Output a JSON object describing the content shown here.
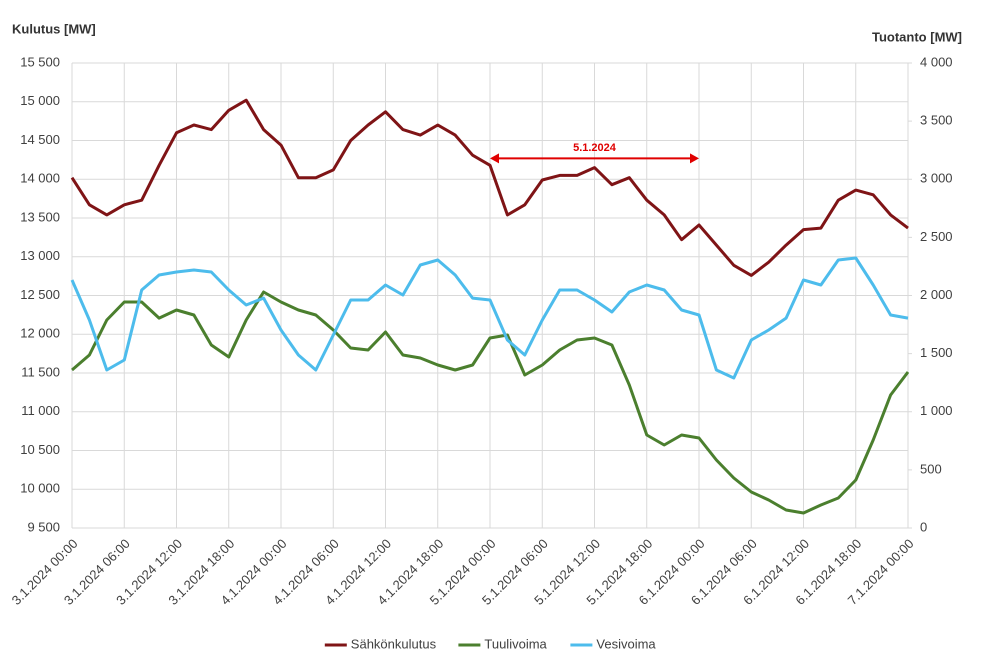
{
  "chart_data": {
    "type": "line",
    "y_label": "Kulutus [MW]",
    "y2_label": "Tuotanto [MW]",
    "grid": true,
    "legend": "bottom",
    "xlim": [
      0,
      96
    ],
    "xticks": [
      {
        "value": 0,
        "label": "3.1.2024 00:00"
      },
      {
        "value": 6,
        "label": "3.1.2024 06:00"
      },
      {
        "value": 12,
        "label": "3.1.2024 12:00"
      },
      {
        "value": 18,
        "label": "3.1.2024 18:00"
      },
      {
        "value": 24,
        "label": "4.1.2024 00:00"
      },
      {
        "value": 30,
        "label": "4.1.2024 06:00"
      },
      {
        "value": 36,
        "label": "4.1.2024 12:00"
      },
      {
        "value": 42,
        "label": "4.1.2024 18:00"
      },
      {
        "value": 48,
        "label": "5.1.2024 00:00"
      },
      {
        "value": 54,
        "label": "5.1.2024 06:00"
      },
      {
        "value": 60,
        "label": "5.1.2024 12:00"
      },
      {
        "value": 66,
        "label": "5.1.2024 18:00"
      },
      {
        "value": 72,
        "label": "6.1.2024 00:00"
      },
      {
        "value": 78,
        "label": "6.1.2024 06:00"
      },
      {
        "value": 84,
        "label": "6.1.2024 12:00"
      },
      {
        "value": 90,
        "label": "6.1.2024 18:00"
      },
      {
        "value": 96,
        "label": "7.1.2024 00:00"
      }
    ],
    "ylim": [
      9500,
      15500
    ],
    "yticks": [
      {
        "value": 9500,
        "label": "9 500"
      },
      {
        "value": 10000,
        "label": "10 000"
      },
      {
        "value": 10500,
        "label": "10 500"
      },
      {
        "value": 11000,
        "label": "11 000"
      },
      {
        "value": 11500,
        "label": "11 500"
      },
      {
        "value": 12000,
        "label": "12 000"
      },
      {
        "value": 12500,
        "label": "12 500"
      },
      {
        "value": 13000,
        "label": "13 000"
      },
      {
        "value": 13500,
        "label": "13 500"
      },
      {
        "value": 14000,
        "label": "14 000"
      },
      {
        "value": 14500,
        "label": "14 500"
      },
      {
        "value": 15000,
        "label": "15 000"
      },
      {
        "value": 15500,
        "label": "15 500"
      }
    ],
    "y2lim": [
      0,
      4000
    ],
    "y2ticks": [
      0,
      500,
      {
        "value": 1000,
        "label": "1 000"
      },
      {
        "value": 1500,
        "label": "1 500"
      },
      {
        "value": 2000,
        "label": "2 000"
      },
      {
        "value": 2500,
        "label": "2 500"
      },
      {
        "value": 3000,
        "label": "3 000"
      },
      {
        "value": 3500,
        "label": "3 500"
      },
      {
        "value": 4000,
        "label": "4 000"
      }
    ],
    "x": [
      0,
      2,
      4,
      6,
      8,
      10,
      12,
      14,
      16,
      18,
      20,
      22,
      24,
      26,
      28,
      30,
      32,
      34,
      36,
      38,
      40,
      42,
      44,
      46,
      48,
      50,
      52,
      54,
      56,
      58,
      60,
      62,
      64,
      66,
      68,
      70,
      72,
      74,
      76,
      78,
      80,
      82,
      84,
      86,
      88,
      90,
      92,
      94,
      96
    ],
    "series": [
      {
        "name": "Sähkönkulutus",
        "color": "#7f1416",
        "axis": "y",
        "values": [
          14020,
          13670,
          13540,
          13670,
          13730,
          14180,
          14600,
          14700,
          14640,
          14890,
          15020,
          14640,
          14440,
          14020,
          14020,
          14120,
          14500,
          14700,
          14870,
          14640,
          14570,
          14700,
          14570,
          14310,
          14180,
          13540,
          13670,
          13990,
          14050,
          14050,
          14150,
          13930,
          14020,
          13730,
          13540,
          13220,
          13410,
          13150,
          12890,
          12760,
          12930,
          13150,
          13350,
          13370,
          13730,
          13860,
          13800,
          13540,
          13370
        ]
      },
      {
        "name": "Tuulivoima",
        "color": "#4b7f2e",
        "axis": "y2",
        "values": [
          1359,
          1488,
          1789,
          1944,
          1944,
          1806,
          1875,
          1832,
          1574,
          1471,
          1789,
          2030,
          1944,
          1875,
          1832,
          1703,
          1548,
          1531,
          1686,
          1488,
          1462,
          1402,
          1359,
          1402,
          1634,
          1660,
          1316,
          1402,
          1531,
          1617,
          1634,
          1574,
          1230,
          800,
          714,
          800,
          774,
          585,
          430,
          310,
          241,
          155,
          129,
          198,
          258,
          413,
          757,
          1144,
          1342
        ]
      },
      {
        "name": "Vesivoima",
        "color": "#4dbcec",
        "axis": "y2",
        "values": [
          2133,
          1789,
          1359,
          1445,
          2047,
          2176,
          2202,
          2219,
          2202,
          2047,
          1918,
          1978,
          1703,
          1488,
          1359,
          1660,
          1961,
          1961,
          2090,
          2004,
          2262,
          2305,
          2176,
          1978,
          1961,
          1617,
          1488,
          1789,
          2047,
          2047,
          1961,
          1858,
          2030,
          2090,
          2047,
          1875,
          1832,
          1359,
          1290,
          1617,
          1703,
          1806,
          2133,
          2090,
          2305,
          2323,
          2090,
          1832,
          1806
        ]
      }
    ],
    "annotation": {
      "text": "5.1.2024",
      "x": [
        48,
        72
      ],
      "y": 14270,
      "color": "#e00000"
    }
  }
}
